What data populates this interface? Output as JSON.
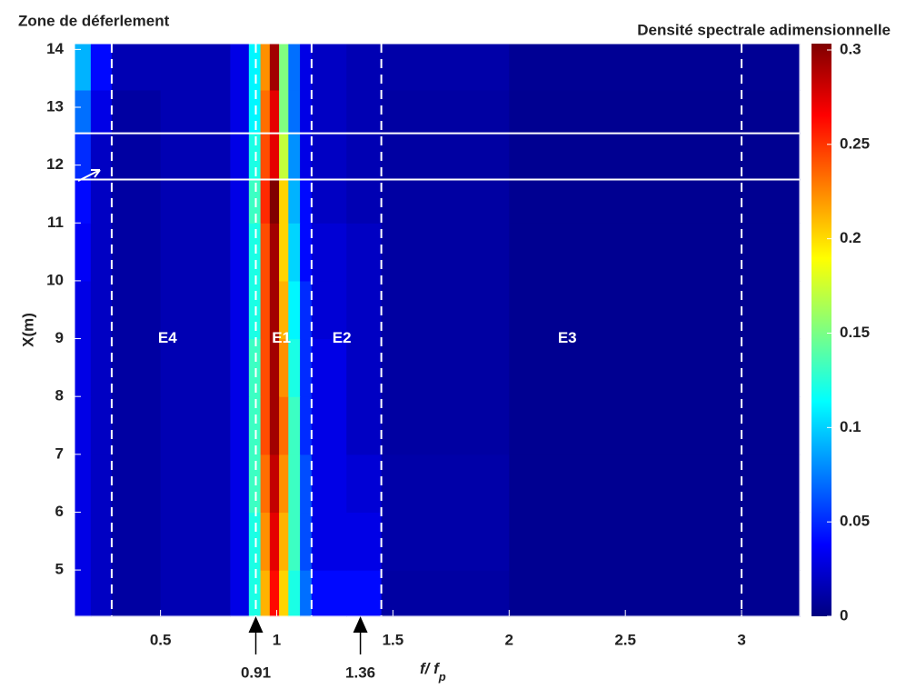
{
  "chart_data": {
    "type": "heatmap",
    "title": "Zone de déferlement",
    "colorbar_title": "Densité spectrale adimensionnelle",
    "xlabel": {
      "main": "f/ f",
      "sub": "p"
    },
    "ylabel": "X(m)",
    "xlim": [
      0.13,
      3.25
    ],
    "ylim": [
      4.2,
      14.1
    ],
    "xticks": [
      0.5,
      1,
      1.5,
      2,
      2.5,
      3
    ],
    "yticks": [
      5,
      6,
      7,
      8,
      9,
      10,
      11,
      12,
      13,
      14
    ],
    "clim": [
      0,
      0.3
    ],
    "cticks": [
      0,
      0.05,
      0.1,
      0.15,
      0.2,
      0.25,
      0.3
    ],
    "colormap": "jet",
    "x_edges": [
      0.13,
      0.2,
      0.29,
      0.5,
      0.8,
      0.88,
      0.93,
      0.97,
      1.01,
      1.05,
      1.1,
      1.15,
      1.3,
      1.45,
      2,
      3.25
    ],
    "y_edges": [
      4.2,
      5,
      6,
      7,
      8,
      9,
      10,
      11,
      11.75,
      12.55,
      13.3,
      14.1
    ],
    "z": [
      [
        0.03,
        0.02,
        0.01,
        0.015,
        0.03,
        0.12,
        0.21,
        0.26,
        0.2,
        0.12,
        0.07,
        0.04,
        0.04,
        0.01,
        0.005
      ],
      [
        0.03,
        0.02,
        0.01,
        0.015,
        0.03,
        0.12,
        0.22,
        0.27,
        0.21,
        0.13,
        0.06,
        0.03,
        0.03,
        0.012,
        0.005
      ],
      [
        0.03,
        0.02,
        0.01,
        0.015,
        0.03,
        0.13,
        0.23,
        0.28,
        0.22,
        0.13,
        0.06,
        0.03,
        0.025,
        0.012,
        0.005
      ],
      [
        0.03,
        0.02,
        0.01,
        0.015,
        0.03,
        0.13,
        0.24,
        0.29,
        0.23,
        0.13,
        0.05,
        0.03,
        0.02,
        0.01,
        0.005
      ],
      [
        0.03,
        0.02,
        0.01,
        0.015,
        0.03,
        0.13,
        0.24,
        0.29,
        0.22,
        0.12,
        0.05,
        0.03,
        0.02,
        0.01,
        0.005
      ],
      [
        0.03,
        0.02,
        0.01,
        0.015,
        0.03,
        0.12,
        0.24,
        0.29,
        0.21,
        0.11,
        0.05,
        0.025,
        0.02,
        0.01,
        0.005
      ],
      [
        0.035,
        0.02,
        0.01,
        0.015,
        0.03,
        0.12,
        0.24,
        0.29,
        0.2,
        0.1,
        0.04,
        0.025,
        0.02,
        0.01,
        0.005
      ],
      [
        0.04,
        0.02,
        0.01,
        0.015,
        0.03,
        0.13,
        0.25,
        0.3,
        0.2,
        0.09,
        0.04,
        0.02,
        0.015,
        0.01,
        0.005
      ],
      [
        0.05,
        0.02,
        0.01,
        0.015,
        0.03,
        0.12,
        0.24,
        0.27,
        0.17,
        0.08,
        0.03,
        0.02,
        0.015,
        0.01,
        0.005
      ],
      [
        0.07,
        0.03,
        0.01,
        0.015,
        0.03,
        0.11,
        0.23,
        0.27,
        0.15,
        0.07,
        0.03,
        0.02,
        0.015,
        0.01,
        0.005
      ],
      [
        0.09,
        0.04,
        0.015,
        0.015,
        0.03,
        0.11,
        0.22,
        0.29,
        0.15,
        0.07,
        0.03,
        0.02,
        0.015,
        0.012,
        0.006
      ]
    ],
    "vlines": [
      0.29,
      0.91,
      1.15,
      1.45,
      3
    ],
    "hlines": [
      11.75,
      12.55
    ],
    "regions": [
      {
        "label": "E4",
        "x": 0.53,
        "y": 9
      },
      {
        "label": "E1",
        "x": 1.02,
        "y": 9
      },
      {
        "label": "E2",
        "x": 1.28,
        "y": 9
      },
      {
        "label": "E3",
        "x": 2.25,
        "y": 9
      }
    ],
    "arrows": [
      0.91,
      1.36
    ]
  }
}
